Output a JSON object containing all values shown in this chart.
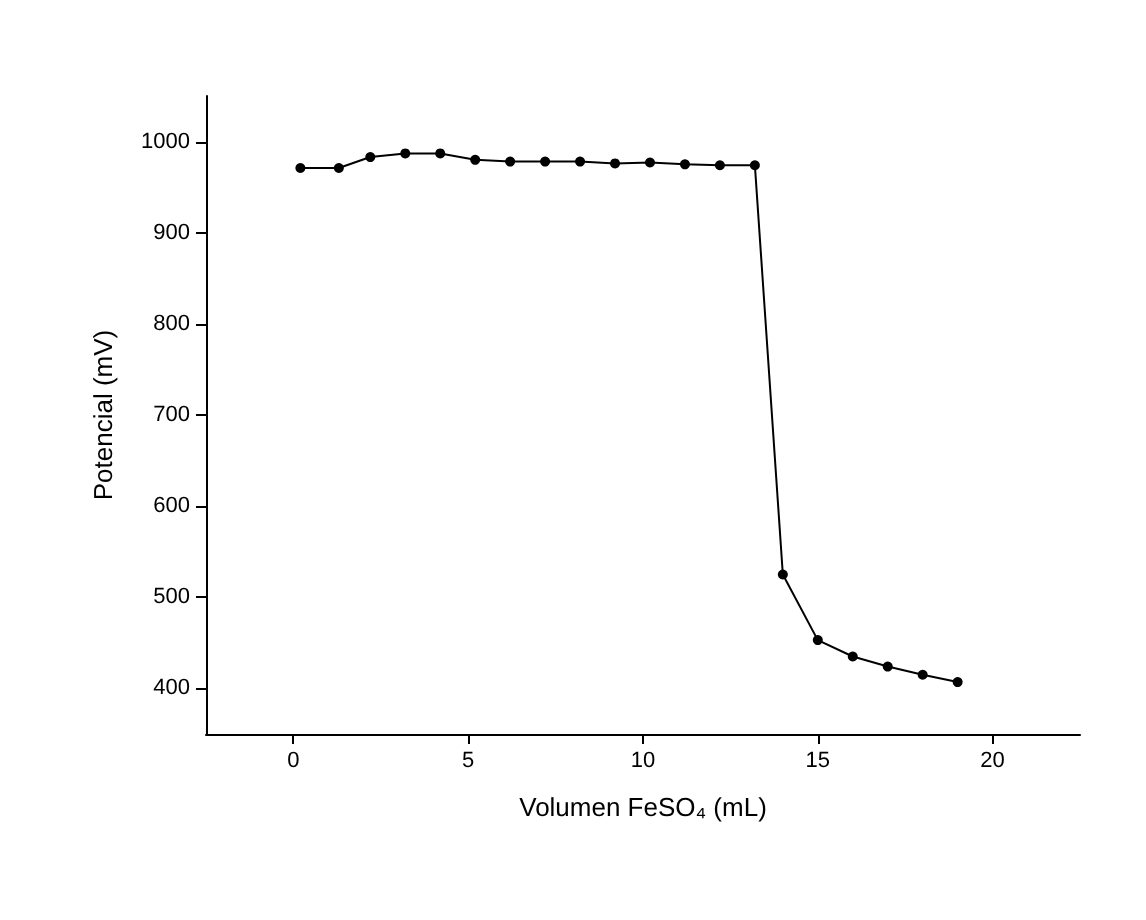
{
  "chart_data": {
    "type": "line",
    "xlabel": "Volumen FeSO₄ (mL)",
    "ylabel": "Potencial (mV)",
    "x": [
      0.2,
      1.3,
      2.2,
      3.2,
      4.2,
      5.2,
      6.2,
      7.2,
      8.2,
      9.2,
      10.2,
      11.2,
      12.2,
      13.2,
      14,
      15,
      16,
      17,
      18,
      19
    ],
    "series": [
      {
        "color": "#000000",
        "values": [
          971,
          971,
          983,
          987,
          987,
          980,
          978,
          978,
          978,
          976,
          977,
          975,
          974,
          974,
          525,
          453,
          435,
          424,
          415,
          407
        ]
      }
    ],
    "xlim": [
      -2.5,
      22.5
    ],
    "xticks": [
      0,
      5,
      10,
      15,
      20
    ],
    "ylim": [
      350,
      1050
    ],
    "yticks": [
      400,
      500,
      600,
      700,
      800,
      900,
      1000
    ],
    "grid": false,
    "marker": "circle",
    "line_style": "solid"
  }
}
